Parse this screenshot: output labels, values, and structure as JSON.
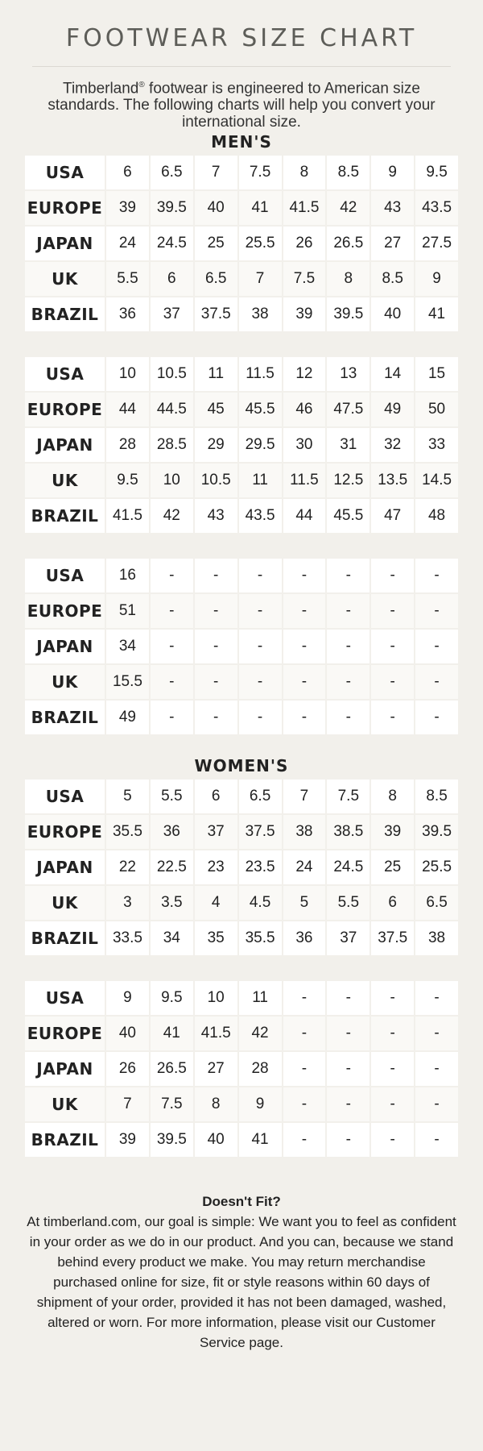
{
  "title": "FOOTWEAR SIZE CHART",
  "intro": {
    "brand": "Timberland",
    "mark": "®",
    "text": " footwear is engineered to American size standards. The following charts will help you convert your international size."
  },
  "row_labels": [
    "USA",
    "EUROPE",
    "JAPAN",
    "UK",
    "BRAZIL"
  ],
  "mens": {
    "title": "MEN'S",
    "tables": [
      [
        [
          "6",
          "6.5",
          "7",
          "7.5",
          "8",
          "8.5",
          "9",
          "9.5"
        ],
        [
          "39",
          "39.5",
          "40",
          "41",
          "41.5",
          "42",
          "43",
          "43.5"
        ],
        [
          "24",
          "24.5",
          "25",
          "25.5",
          "26",
          "26.5",
          "27",
          "27.5"
        ],
        [
          "5.5",
          "6",
          "6.5",
          "7",
          "7.5",
          "8",
          "8.5",
          "9"
        ],
        [
          "36",
          "37",
          "37.5",
          "38",
          "39",
          "39.5",
          "40",
          "41"
        ]
      ],
      [
        [
          "10",
          "10.5",
          "11",
          "11.5",
          "12",
          "13",
          "14",
          "15"
        ],
        [
          "44",
          "44.5",
          "45",
          "45.5",
          "46",
          "47.5",
          "49",
          "50"
        ],
        [
          "28",
          "28.5",
          "29",
          "29.5",
          "30",
          "31",
          "32",
          "33"
        ],
        [
          "9.5",
          "10",
          "10.5",
          "11",
          "11.5",
          "12.5",
          "13.5",
          "14.5"
        ],
        [
          "41.5",
          "42",
          "43",
          "43.5",
          "44",
          "45.5",
          "47",
          "48"
        ]
      ],
      [
        [
          "16",
          "-",
          "-",
          "-",
          "-",
          "-",
          "-",
          "-"
        ],
        [
          "51",
          "-",
          "-",
          "-",
          "-",
          "-",
          "-",
          "-"
        ],
        [
          "34",
          "-",
          "-",
          "-",
          "-",
          "-",
          "-",
          "-"
        ],
        [
          "15.5",
          "-",
          "-",
          "-",
          "-",
          "-",
          "-",
          "-"
        ],
        [
          "49",
          "-",
          "-",
          "-",
          "-",
          "-",
          "-",
          "-"
        ]
      ]
    ]
  },
  "womens": {
    "title": "WOMEN'S",
    "tables": [
      [
        [
          "5",
          "5.5",
          "6",
          "6.5",
          "7",
          "7.5",
          "8",
          "8.5"
        ],
        [
          "35.5",
          "36",
          "37",
          "37.5",
          "38",
          "38.5",
          "39",
          "39.5"
        ],
        [
          "22",
          "22.5",
          "23",
          "23.5",
          "24",
          "24.5",
          "25",
          "25.5"
        ],
        [
          "3",
          "3.5",
          "4",
          "4.5",
          "5",
          "5.5",
          "6",
          "6.5"
        ],
        [
          "33.5",
          "34",
          "35",
          "35.5",
          "36",
          "37",
          "37.5",
          "38"
        ]
      ],
      [
        [
          "9",
          "9.5",
          "10",
          "11",
          "-",
          "-",
          "-",
          "-"
        ],
        [
          "40",
          "41",
          "41.5",
          "42",
          "-",
          "-",
          "-",
          "-"
        ],
        [
          "26",
          "26.5",
          "27",
          "28",
          "-",
          "-",
          "-",
          "-"
        ],
        [
          "7",
          "7.5",
          "8",
          "9",
          "-",
          "-",
          "-",
          "-"
        ],
        [
          "39",
          "39.5",
          "40",
          "41",
          "-",
          "-",
          "-",
          "-"
        ]
      ]
    ]
  },
  "fit": {
    "title": "Doesn't Fit?",
    "body": "At timberland.com, our goal is simple: We want you to feel as confident in your order as we do in our product. And you can, because we stand behind every product we make. You may return merchandise purchased online for size, fit or style reasons within 60 days of shipment of your order, provided it has not been damaged, washed, altered or worn. For more information, please visit our Customer Service page."
  }
}
